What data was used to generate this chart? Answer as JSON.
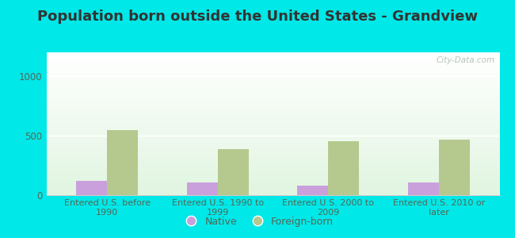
{
  "title": "Population born outside the United States - Grandview",
  "categories": [
    "Entered U.S. before\n1990",
    "Entered U.S. 1990 to\n1999",
    "Entered U.S. 2000 to\n2009",
    "Entered U.S. 2010 or\nlater"
  ],
  "native_values": [
    120,
    110,
    80,
    105
  ],
  "foreign_values": [
    545,
    390,
    455,
    470
  ],
  "native_color": "#c9a0dc",
  "foreign_color": "#b5c98e",
  "background_outer": "#00e8e8",
  "ylim": [
    0,
    1200
  ],
  "yticks": [
    0,
    500,
    1000
  ],
  "bar_width": 0.28,
  "legend_native": "Native",
  "legend_foreign": "Foreign-born",
  "watermark": "City-Data.com",
  "title_fontsize": 13,
  "tick_fontsize": 8.5,
  "label_fontsize": 8,
  "title_color": "#333333",
  "tick_color": "#556655",
  "label_color": "#556655"
}
